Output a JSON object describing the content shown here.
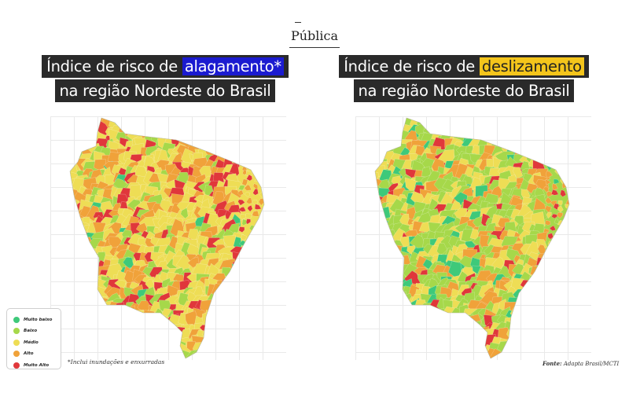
{
  "brand": "Pública",
  "maps": [
    {
      "title_prefix": "Índice de risco de ",
      "title_highlight": "alagamento*",
      "title_line2": "na região Nordeste do Brasil",
      "highlight_color": "#1b1bd0",
      "dominant_level": "medio"
    },
    {
      "title_prefix": "Índice de risco de ",
      "title_highlight": "deslizamento",
      "title_line2": "na região Nordeste do Brasil",
      "highlight_color": "#f4c51b",
      "dominant_level": "baixo"
    }
  ],
  "legend": [
    {
      "label": "Muito baixo",
      "color": "#3ec97a"
    },
    {
      "label": "Baixo",
      "color": "#a6d84a"
    },
    {
      "label": "Médio",
      "color": "#eedd55"
    },
    {
      "label": "Alto",
      "color": "#f0a23a"
    },
    {
      "label": "Muito Alto",
      "color": "#e0373b"
    }
  ],
  "footnote": "*Inclui inundações e enxurradas",
  "source": {
    "label": "Fonte:",
    "text": "Adapta Brasil/MCTI"
  }
}
